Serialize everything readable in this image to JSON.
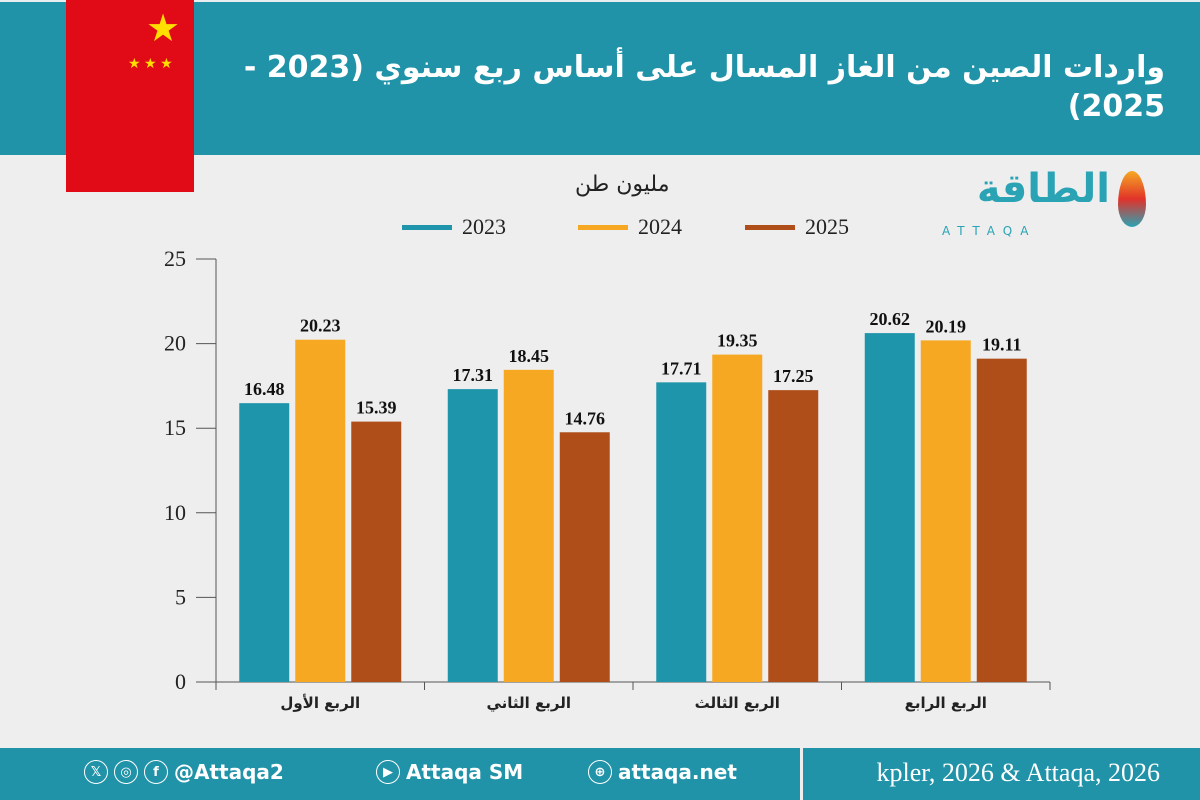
{
  "title": "واردات الصين من الغاز المسال على أساس ربع سنوي (2023 - 2025)",
  "logo": {
    "text": "الطاقة",
    "sub": "ATTAQA"
  },
  "colors": {
    "header": "#2093a8",
    "2023": "#1e95ab",
    "2024": "#f6a823",
    "2025": "#b04e1a",
    "flag": "#e10a17"
  },
  "chart_data": {
    "type": "bar",
    "title": "",
    "ylabel": "مليون طن",
    "ylim": [
      0,
      25
    ],
    "yticks": [
      "0",
      "5",
      "10",
      "15",
      "20",
      "25"
    ],
    "categories": [
      "الربع الأول",
      "الربع الثاني",
      "الربع الثالث",
      "الربع الرابع"
    ],
    "series": [
      {
        "name": "2023",
        "values": [
          16.48,
          17.31,
          17.71,
          20.62
        ],
        "color": "#1e95ab"
      },
      {
        "name": "2024",
        "values": [
          20.23,
          18.45,
          19.35,
          20.19
        ],
        "color": "#f6a823"
      },
      {
        "name": "2025",
        "values": [
          15.39,
          14.76,
          17.25,
          19.11
        ],
        "color": "#b04e1a"
      }
    ],
    "legend": "top",
    "grid": false
  },
  "footer": {
    "handle": "@Attaqa2",
    "youtube": "Attaqa SM",
    "website": "attaqa.net",
    "source": "kpler, 2026 & Attaqa, 2026"
  }
}
